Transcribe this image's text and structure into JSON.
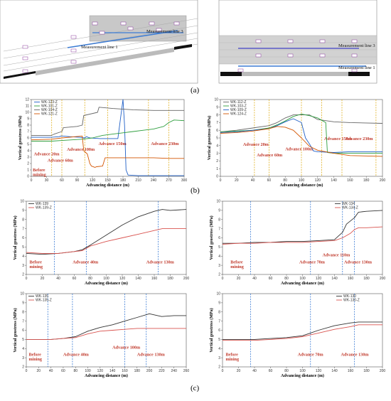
{
  "panel_labels": {
    "a": "(a)",
    "b": "(b)",
    "c": "(c)"
  },
  "schematics": [
    {
      "lines": [
        "Measurement line 1",
        "Measurement line 3"
      ]
    },
    {
      "lines": [
        "Measurement line 3",
        "Measurement line 1"
      ]
    }
  ],
  "chart_data": [
    {
      "type": "line",
      "panel": "b-left",
      "xlabel": "Advancing distance (m)",
      "ylabel": "Vertical geostress (MPa)",
      "xlim": [
        0,
        300
      ],
      "ylim": [
        0,
        12
      ],
      "xticks": [
        0,
        30,
        60,
        90,
        120,
        150,
        180,
        210,
        240,
        270,
        300
      ],
      "yticks": [
        0,
        1,
        2,
        3,
        4,
        5,
        6,
        7,
        8,
        9,
        10,
        11,
        12
      ],
      "series": [
        {
          "name": "WK-123-Z",
          "color": "#1f5fc6",
          "x": [
            0,
            40,
            55,
            58,
            62,
            75,
            95,
            105,
            108,
            115,
            135,
            150,
            170,
            180,
            183,
            186,
            190,
            210,
            240,
            270,
            300
          ],
          "y": [
            6.1,
            6.1,
            6.2,
            6.3,
            6.3,
            6.2,
            6.1,
            6.0,
            6.2,
            6.0,
            5.9,
            5.9,
            5.9,
            12.0,
            8.0,
            1.0,
            0.2,
            0.1,
            0.1,
            0.1,
            0.1
          ]
        },
        {
          "name": "WK-101-Z",
          "color": "#2e9e3e",
          "x": [
            0,
            40,
            60,
            80,
            100,
            120,
            140,
            160,
            180,
            200,
            220,
            240,
            260,
            270,
            280,
            300
          ],
          "y": [
            5.5,
            5.5,
            5.6,
            5.7,
            5.8,
            6.0,
            6.4,
            6.6,
            6.8,
            7.0,
            7.2,
            7.4,
            7.8,
            8.4,
            8.8,
            8.7
          ]
        },
        {
          "name": "WK-104-Z",
          "color": "#666666",
          "x": [
            0,
            40,
            45,
            60,
            63,
            90,
            100,
            103,
            130,
            133,
            160,
            200,
            240,
            280,
            300
          ],
          "y": [
            6.4,
            6.4,
            6.6,
            7.0,
            7.6,
            7.8,
            8.0,
            9.5,
            10.0,
            10.8,
            10.6,
            10.4,
            10.3,
            10.3,
            10.3
          ]
        },
        {
          "name": "WK-121-Z",
          "color": "#d35400",
          "x": [
            0,
            40,
            60,
            100,
            103,
            110,
            115,
            118,
            125,
            128,
            140,
            145,
            170,
            200,
            240,
            270,
            300
          ],
          "y": [
            5.7,
            5.8,
            6.0,
            6.3,
            4.0,
            3.5,
            2.0,
            1.6,
            1.4,
            1.5,
            1.6,
            2.9,
            2.9,
            2.9,
            2.9,
            2.8,
            2.8
          ]
        }
      ],
      "annotations": [
        "Before mining",
        "Advance 20m",
        "Advance 60m",
        "Advance 100m",
        "Advance 150m",
        "Advance 230m"
      ]
    },
    {
      "type": "line",
      "panel": "b-right",
      "xlabel": "Advancing distance (m)",
      "ylabel": "Vertical geostress (MPa)",
      "xlim": [
        0,
        200
      ],
      "ylim": [
        0,
        10
      ],
      "xticks": [
        0,
        20,
        40,
        60,
        80,
        100,
        120,
        140,
        160,
        180,
        200
      ],
      "yticks": [
        0,
        1,
        2,
        3,
        4,
        5,
        6,
        7,
        8,
        9,
        10
      ],
      "series": [
        {
          "name": "WK-112-Z",
          "color": "#666666",
          "x": [
            0,
            20,
            40,
            60,
            70,
            80,
            90,
            100,
            110,
            120,
            140,
            160,
            200
          ],
          "y": [
            5.8,
            6.0,
            6.3,
            6.6,
            7.0,
            7.6,
            8.0,
            8.0,
            8.0,
            7.4,
            7.1,
            7.0,
            6.9
          ]
        },
        {
          "name": "WK-103-Z",
          "color": "#2e9e3e",
          "x": [
            0,
            20,
            40,
            60,
            70,
            80,
            90,
            100,
            110,
            120,
            125,
            130,
            132,
            140,
            160,
            200
          ],
          "y": [
            5.8,
            5.9,
            6.0,
            6.3,
            6.7,
            7.2,
            7.8,
            8.1,
            7.9,
            7.6,
            7.3,
            7.0,
            3.1,
            3.0,
            3.0,
            3.0
          ]
        },
        {
          "name": "WK-109-Z",
          "color": "#1f5fc6",
          "x": [
            0,
            20,
            40,
            60,
            70,
            80,
            90,
            100,
            105,
            110,
            115,
            120,
            140,
            160,
            200
          ],
          "y": [
            5.7,
            5.8,
            6.0,
            6.2,
            6.6,
            7.1,
            7.5,
            7.0,
            5.0,
            4.2,
            3.3,
            3.2,
            3.1,
            3.2,
            3.2
          ]
        },
        {
          "name": "WK-124-Z",
          "color": "#d35400",
          "x": [
            0,
            20,
            40,
            60,
            70,
            80,
            90,
            100,
            110,
            120,
            140,
            160,
            200
          ],
          "y": [
            5.6,
            5.7,
            5.9,
            6.2,
            6.5,
            6.4,
            6.0,
            5.0,
            3.9,
            3.4,
            3.0,
            2.7,
            2.6
          ]
        }
      ],
      "annotations": [
        "Advance 20m",
        "Advance 60m",
        "Advance 100m",
        "Advance 150m",
        "Advance 230m"
      ]
    },
    {
      "type": "line",
      "panel": "c-top-left",
      "xlabel": "Advancing distance (m)",
      "ylabel": "Vertical geostress (MPa)",
      "xlim": [
        0,
        200
      ],
      "ylim": [
        2,
        10
      ],
      "xticks": [
        0,
        20,
        40,
        60,
        80,
        100,
        120,
        140,
        160,
        180,
        200
      ],
      "yticks": [
        2,
        3,
        4,
        5,
        6,
        7,
        8,
        9,
        10
      ],
      "series": [
        {
          "name": "WK-139",
          "color": "#333333",
          "x": [
            0,
            20,
            40,
            60,
            70,
            80,
            100,
            120,
            140,
            160,
            170,
            180,
            200
          ],
          "y": [
            4.3,
            4.2,
            4.3,
            4.5,
            4.7,
            5.2,
            6.3,
            7.4,
            8.3,
            8.9,
            9.1,
            9.0,
            9.1
          ]
        },
        {
          "name": "WK-139-Z",
          "color": "#d9534f",
          "x": [
            0,
            20,
            40,
            60,
            70,
            80,
            100,
            120,
            140,
            160,
            170,
            180,
            200
          ],
          "y": [
            4.4,
            4.3,
            4.3,
            4.5,
            4.6,
            5.1,
            5.6,
            6.0,
            6.4,
            6.8,
            7.0,
            7.0,
            7.0
          ]
        }
      ],
      "annotations": [
        "Before mining",
        "Advance 40m",
        "Advance 130m"
      ]
    },
    {
      "type": "line",
      "panel": "c-top-right",
      "xlabel": "Advancing distance (m)",
      "ylabel": "Vertical geostress (MPa)",
      "xlim": [
        0,
        200
      ],
      "ylim": [
        2,
        10
      ],
      "xticks": [
        0,
        20,
        40,
        60,
        80,
        100,
        120,
        140,
        160,
        180,
        200
      ],
      "yticks": [
        2,
        3,
        4,
        5,
        6,
        7,
        8,
        9,
        10
      ],
      "series": [
        {
          "name": "WK-134",
          "color": "#333333",
          "x": [
            0,
            20,
            40,
            60,
            80,
            100,
            120,
            140,
            145,
            150,
            155,
            165,
            170,
            180,
            200
          ],
          "y": [
            5.4,
            5.4,
            5.5,
            5.5,
            5.6,
            5.6,
            5.7,
            5.8,
            6.2,
            6.6,
            7.5,
            8.2,
            8.8,
            8.9,
            9.0
          ]
        },
        {
          "name": "WK-134-Z",
          "color": "#d9534f",
          "x": [
            0,
            20,
            40,
            60,
            80,
            100,
            120,
            140,
            150,
            160,
            165,
            170,
            180,
            200
          ],
          "y": [
            5.3,
            5.4,
            5.4,
            5.5,
            5.5,
            5.5,
            5.6,
            5.7,
            6.0,
            6.5,
            6.9,
            7.1,
            7.1,
            7.2
          ]
        }
      ],
      "annotations": [
        "Before mining",
        "Advance 70m",
        "Advance 110m",
        "Advance 130m"
      ]
    },
    {
      "type": "line",
      "panel": "c-bottom-left",
      "xlabel": "Advancing distance (m)",
      "ylabel": "Vertical geostress (MPa)",
      "xlim": [
        0,
        260
      ],
      "ylim": [
        2,
        10
      ],
      "xticks": [
        0,
        20,
        40,
        60,
        80,
        100,
        120,
        140,
        160,
        180,
        200,
        220,
        240,
        260
      ],
      "yticks": [
        2,
        3,
        4,
        5,
        6,
        7,
        8,
        9,
        10
      ],
      "series": [
        {
          "name": "WK-135",
          "color": "#333333",
          "x": [
            0,
            20,
            40,
            60,
            80,
            100,
            120,
            140,
            160,
            180,
            200,
            220,
            240,
            260
          ],
          "y": [
            5.0,
            5.0,
            5.0,
            5.1,
            5.3,
            5.9,
            6.3,
            6.6,
            7.0,
            7.4,
            7.8,
            7.5,
            7.6,
            7.6
          ]
        },
        {
          "name": "WK-135-Z",
          "color": "#d9534f",
          "x": [
            0,
            20,
            40,
            60,
            80,
            100,
            120,
            140,
            160,
            180,
            200,
            220,
            240,
            260
          ],
          "y": [
            5.0,
            5.0,
            5.0,
            5.1,
            5.2,
            5.6,
            5.9,
            6.0,
            6.1,
            6.2,
            6.2,
            6.2,
            6.2,
            6.2
          ]
        }
      ],
      "annotations": [
        "Before mining",
        "Advance 40m",
        "Advance 100m",
        "Advance 130m"
      ]
    },
    {
      "type": "line",
      "panel": "c-bottom-right",
      "xlabel": "Advancing distance (m)",
      "ylabel": "Vertical geostress (MPa)",
      "xlim": [
        0,
        200
      ],
      "ylim": [
        2,
        10
      ],
      "xticks": [
        0,
        20,
        40,
        60,
        80,
        100,
        120,
        140,
        160,
        180,
        200
      ],
      "yticks": [
        2,
        3,
        4,
        5,
        6,
        7,
        8,
        9,
        10
      ],
      "series": [
        {
          "name": "WK-130",
          "color": "#333333",
          "x": [
            0,
            20,
            40,
            60,
            80,
            100,
            110,
            120,
            140,
            160,
            170,
            180,
            200
          ],
          "y": [
            5.0,
            5.0,
            5.0,
            5.1,
            5.2,
            5.4,
            5.7,
            6.0,
            6.5,
            6.8,
            6.9,
            6.9,
            6.9
          ]
        },
        {
          "name": "WK-130-Z",
          "color": "#d9534f",
          "x": [
            0,
            20,
            40,
            60,
            80,
            100,
            110,
            120,
            140,
            160,
            170,
            180,
            200
          ],
          "y": [
            4.9,
            4.9,
            4.9,
            5.0,
            5.1,
            5.3,
            5.5,
            5.7,
            6.1,
            6.4,
            6.6,
            6.6,
            6.6
          ]
        }
      ],
      "annotations": [
        "Before mining",
        "Advance 70m",
        "Advance 130m"
      ]
    }
  ]
}
